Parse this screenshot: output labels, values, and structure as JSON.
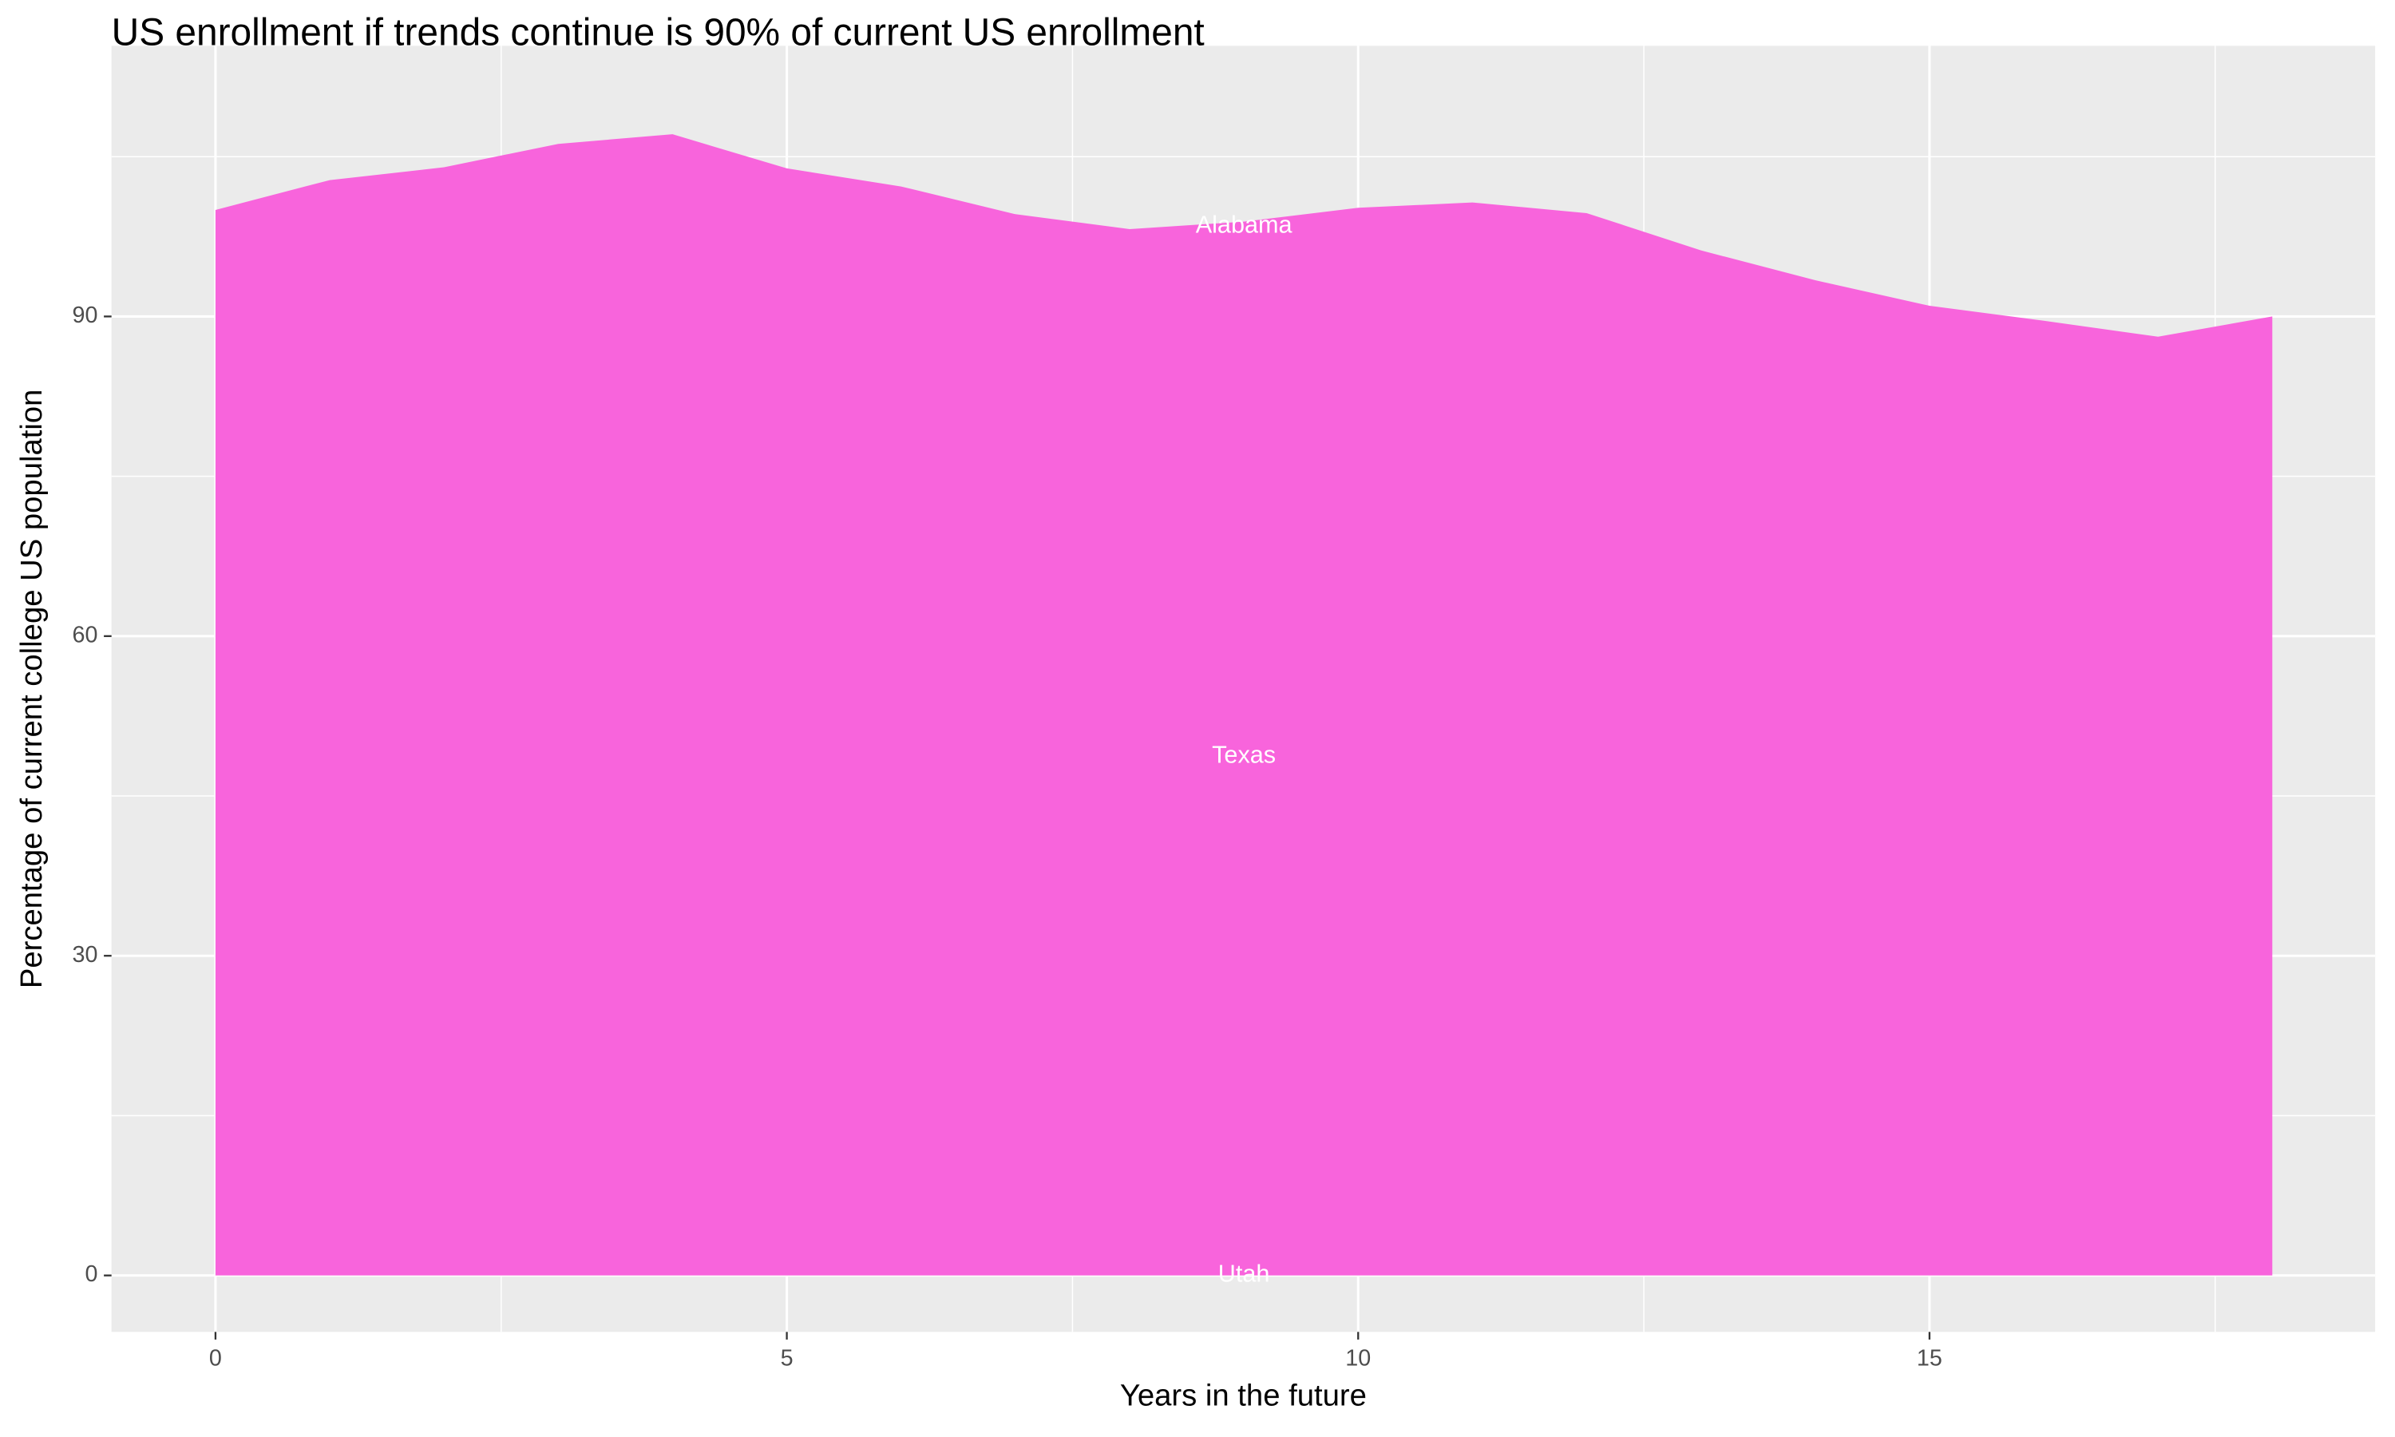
{
  "chart_data": {
    "type": "area",
    "title": "US enrollment if trends continue is 90% of current US enrollment",
    "x_label": "Years in the future",
    "y_label": "Percentage of current college US population",
    "x": [
      0,
      1,
      2,
      3,
      4,
      5,
      6,
      7,
      8,
      9,
      10,
      11,
      12,
      13,
      14,
      15,
      16,
      17,
      18
    ],
    "series": [
      {
        "color": "#f864dc",
        "values": [
          100.0,
          102.8,
          104.0,
          106.2,
          107.1,
          103.9,
          102.2,
          99.6,
          98.2,
          98.9,
          100.2,
          100.7,
          99.7,
          96.2,
          93.4,
          91.0,
          89.6,
          88.1,
          90.0
        ]
      }
    ],
    "annotations": [
      "Alabama",
      "Texas",
      "Utah"
    ],
    "xlim": [
      -0.91,
      18.9
    ],
    "ylim": [
      -5.3,
      115.4
    ],
    "xticks": [
      0,
      5,
      10,
      15
    ],
    "yticks": [
      0,
      30,
      60,
      90
    ],
    "grid": true
  }
}
